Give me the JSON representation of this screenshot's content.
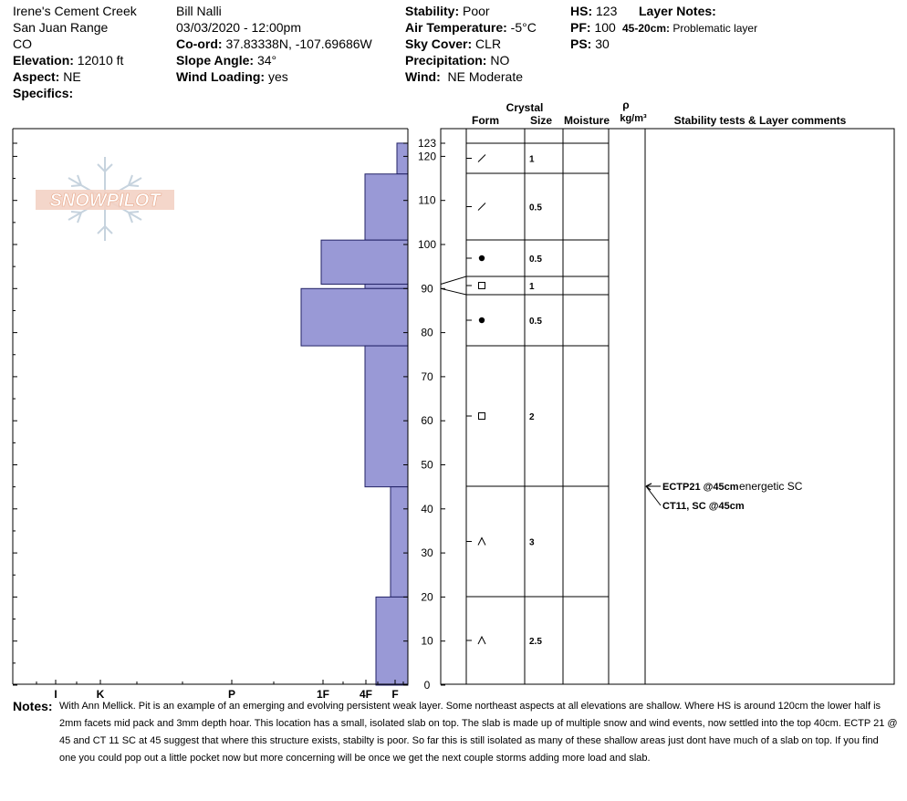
{
  "header": {
    "location_name": "Irene's Cement Creek",
    "range": "San Juan Range",
    "state": "CO",
    "elevation_label": "Elevation:",
    "elevation_value": "12010 ft",
    "aspect_label": "Aspect:",
    "aspect_value": "NE",
    "specifics_label": "Specifics:",
    "observer": "Bill Nalli",
    "datetime": "03/03/2020 - 12:00pm",
    "coord_label": "Co-ord:",
    "coord_value": "37.83338N, -107.69686W",
    "slope_label": "Slope Angle:",
    "slope_value": "34°",
    "wind_loading_label": "Wind Loading:",
    "wind_loading_value": "yes",
    "stability_label": "Stability:",
    "stability_value": "Poor",
    "air_temp_label": "Air Temperature:",
    "air_temp_value": "-5°C",
    "sky_label": "Sky Cover:",
    "sky_value": "CLR",
    "precip_label": "Precipitation:",
    "precip_value": "NO",
    "wind_label": "Wind:",
    "wind_value": "NE Moderate",
    "hs_label": "HS:",
    "hs_value": "123",
    "pf_label": "PF:",
    "pf_value": "100",
    "ps_label": "PS:",
    "ps_value": "30",
    "layer_notes_label": "Layer Notes:",
    "layer_note_range": "45-20cm:",
    "layer_note_text": "Problematic layer"
  },
  "columns": {
    "crystal": "Crystal",
    "form": "Form",
    "size": "Size",
    "moisture": "Moisture",
    "rho": "ρ",
    "density_unit": "kg/m³",
    "stability_comments": "Stability tests & Layer comments"
  },
  "logo_text": "SNOWPILOT",
  "accent_color": "#9999d6",
  "hardness_labels": [
    "I",
    "K",
    "P",
    "1F",
    "4F",
    "F"
  ],
  "chart_data": {
    "type": "bar",
    "orientation": "horizontal",
    "y_axis": "height (cm)",
    "ylim": [
      0,
      123
    ],
    "y_ticks": [
      0,
      10,
      20,
      30,
      40,
      50,
      60,
      70,
      80,
      90,
      100,
      110,
      120,
      123
    ],
    "x_ticks": [
      "I",
      "K",
      "P",
      "1F",
      "4F",
      "F"
    ],
    "layers": [
      {
        "top": 123,
        "bottom": 116,
        "hardness": "F",
        "form": "decomposing",
        "size": "1"
      },
      {
        "top": 116,
        "bottom": 101,
        "hardness": "4F",
        "form": "decomposing",
        "size": "0.5"
      },
      {
        "top": 101,
        "bottom": 91,
        "hardness": "1F",
        "form": "rounds",
        "size": "0.5"
      },
      {
        "top": 91,
        "bottom": 90,
        "hardness": "4F",
        "form": "facets",
        "size": "1"
      },
      {
        "top": 90,
        "bottom": 77,
        "hardness": "1F+",
        "form": "rounds",
        "size": "0.5"
      },
      {
        "top": 77,
        "bottom": 45,
        "hardness": "4F",
        "form": "facets",
        "size": "2"
      },
      {
        "top": 45,
        "bottom": 20,
        "hardness": "F+",
        "form": "depth hoar",
        "size": "3"
      },
      {
        "top": 20,
        "bottom": 0,
        "hardness": "F-",
        "form": "depth hoar",
        "size": "2.5"
      }
    ],
    "tests": [
      {
        "depth": 45,
        "label": "ECTP21 @45cm",
        "comment": "energetic SC"
      },
      {
        "depth": 45,
        "label": "CT11, SC @45cm",
        "comment": ""
      }
    ]
  },
  "notes": {
    "label": "Notes:",
    "text": "With Ann Mellick. Pit is an example of an emerging and evolving persistent weak layer. Some northeast aspects at all elevations are shallow. Where HS is around 120cm the lower half is 2mm facets mid pack and 3mm depth hoar. This location has a small, isolated slab on top. The slab is made up of multiple snow and wind events, now settled into the top 40cm. ECTP 21 @ 45 and CT 11 SC at 45 suggest that where this structure exists, stabilty is poor. So far this is still isolated as many of these shallow areas just dont have much of a slab on top. If you find one you could pop out a little pocket now but more concerning will be once we get the next couple storms adding more load and slab."
  }
}
